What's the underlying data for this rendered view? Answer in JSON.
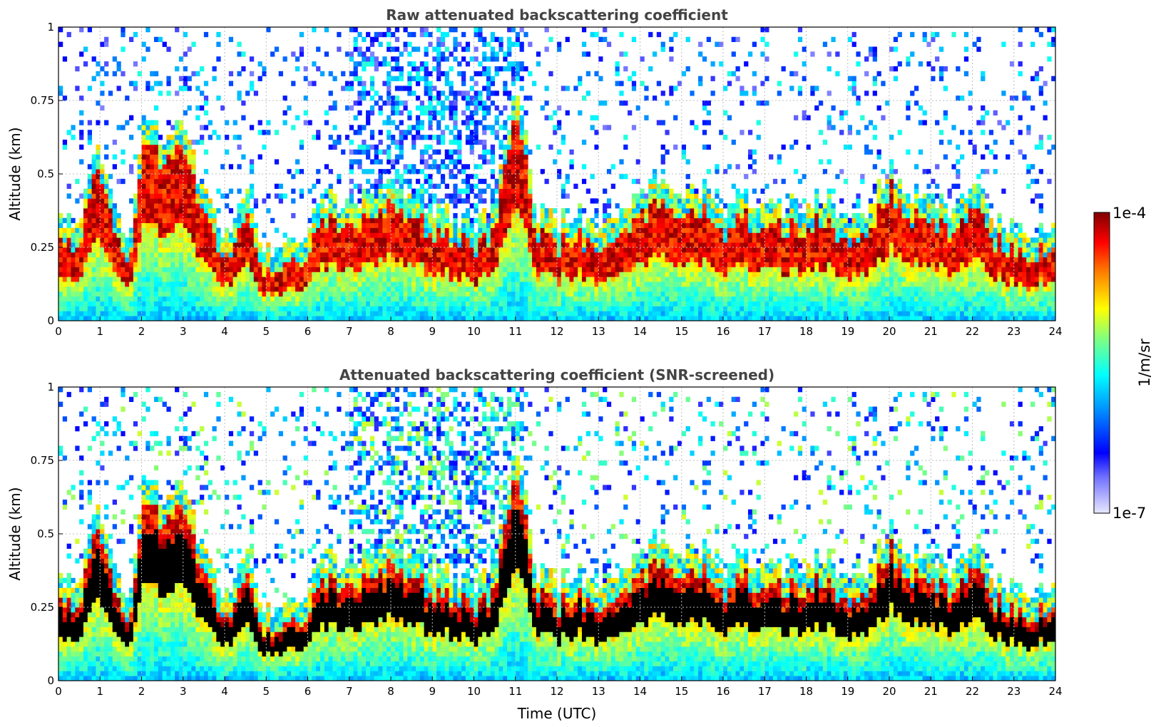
{
  "chart_data": [
    {
      "type": "heatmap",
      "title": "Raw attenuated backscattering coefficient",
      "xlabel": "",
      "ylabel": "Altitude (km)",
      "xlim": [
        0,
        24
      ],
      "ylim": [
        0,
        1
      ],
      "xticks": [
        "0",
        "1",
        "2",
        "3",
        "4",
        "5",
        "6",
        "7",
        "8",
        "9",
        "10",
        "11",
        "12",
        "13",
        "14",
        "15",
        "16",
        "17",
        "18",
        "19",
        "20",
        "21",
        "22",
        "23",
        "24"
      ],
      "yticks": [
        "0",
        "0.25",
        "0.5",
        "0.75",
        "1"
      ],
      "grid": true,
      "screened": false
    },
    {
      "type": "heatmap",
      "title": "Attenuated backscattering coefficient (SNR-screened)",
      "xlabel": "Time (UTC)",
      "ylabel": "Altitude (km)",
      "xlim": [
        0,
        24
      ],
      "ylim": [
        0,
        1
      ],
      "xticks": [
        "0",
        "1",
        "2",
        "3",
        "4",
        "5",
        "6",
        "7",
        "8",
        "9",
        "10",
        "11",
        "12",
        "13",
        "14",
        "15",
        "16",
        "17",
        "18",
        "19",
        "20",
        "21",
        "22",
        "23",
        "24"
      ],
      "yticks": [
        "0",
        "0.25",
        "0.5",
        "0.75",
        "1"
      ],
      "grid": true,
      "screened": true
    }
  ],
  "colorbar": {
    "label": "1/m/sr",
    "max_label": "1e-4",
    "min_label": "1e-7",
    "scale": "log",
    "colormap": "jet",
    "colors": [
      "#e8e8ff",
      "#0000ff",
      "#00c8ff",
      "#40ffc0",
      "#ffff00",
      "#ff8000",
      "#ff0000",
      "#800000"
    ]
  },
  "boundary_layer_profile": {
    "hours": [
      0,
      0.5,
      0.9,
      1.5,
      1.8,
      2,
      2.5,
      3,
      3.5,
      4,
      4.5,
      5,
      5.5,
      6,
      6.5,
      7,
      7.5,
      8,
      8.5,
      9,
      9.5,
      10,
      10.5,
      11,
      11.5,
      12,
      12.5,
      13,
      13.5,
      14,
      14.5,
      15,
      15.5,
      16,
      16.5,
      17,
      17.5,
      18,
      18.5,
      19,
      19.5,
      20,
      20.5,
      21,
      21.5,
      22,
      22.5,
      23,
      23.5,
      24
    ],
    "altitude_km": [
      0.28,
      0.22,
      0.55,
      0.22,
      0.25,
      0.62,
      0.55,
      0.58,
      0.35,
      0.2,
      0.38,
      0.15,
      0.18,
      0.22,
      0.35,
      0.3,
      0.35,
      0.38,
      0.35,
      0.3,
      0.28,
      0.25,
      0.3,
      0.75,
      0.3,
      0.25,
      0.3,
      0.22,
      0.3,
      0.35,
      0.4,
      0.35,
      0.38,
      0.3,
      0.35,
      0.3,
      0.32,
      0.3,
      0.35,
      0.25,
      0.3,
      0.45,
      0.35,
      0.35,
      0.3,
      0.38,
      0.28,
      0.22,
      0.22,
      0.23
    ]
  }
}
